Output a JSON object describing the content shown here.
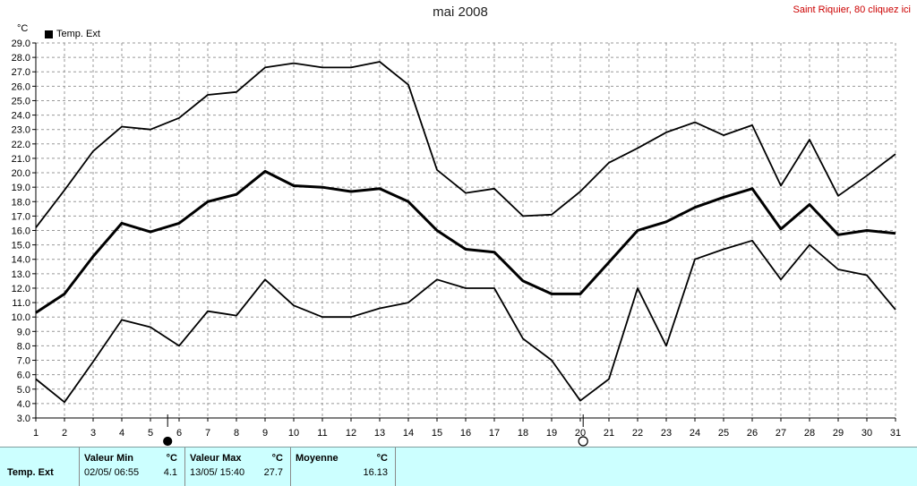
{
  "header": {
    "station_link": "Saint Riquier, 80 cliquez ici"
  },
  "colors": {
    "link": "#cc0000",
    "panel_background": "#ccffff",
    "series": "#000000",
    "grid": "#999999",
    "legend_swatch": "#000000"
  },
  "chart_data": {
    "type": "line",
    "title": "mai 2008",
    "xlabel": "",
    "ylabel": "°C",
    "xlim": [
      1,
      31
    ],
    "ylim": [
      3.0,
      29.0
    ],
    "grid": true,
    "x": [
      1,
      2,
      3,
      4,
      5,
      6,
      7,
      8,
      9,
      10,
      11,
      12,
      13,
      14,
      15,
      16,
      17,
      18,
      19,
      20,
      21,
      22,
      23,
      24,
      25,
      26,
      27,
      28,
      29,
      30,
      31
    ],
    "y_ticks": [
      "3.0",
      "4.0",
      "5.0",
      "6.0",
      "7.0",
      "8.0",
      "9.0",
      "10.0",
      "11.0",
      "12.0",
      "13.0",
      "14.0",
      "15.0",
      "16.0",
      "17.0",
      "18.0",
      "19.0",
      "20.0",
      "21.0",
      "22.0",
      "23.0",
      "24.0",
      "25.0",
      "26.0",
      "27.0",
      "28.0",
      "29.0"
    ],
    "legend": {
      "position": "top-left",
      "entries": [
        {
          "label": "Temp. Ext",
          "icon": "black-square"
        }
      ]
    },
    "series": [
      {
        "values": [
          16.2,
          18.8,
          21.5,
          23.2,
          23.0,
          23.8,
          25.4,
          25.6,
          27.3,
          27.6,
          27.3,
          27.3,
          27.7,
          26.1,
          20.2,
          18.6,
          18.9,
          17.0,
          17.1,
          18.7,
          20.7,
          21.7,
          22.8,
          23.5,
          22.6,
          23.3,
          19.1,
          22.3,
          18.4,
          19.8,
          21.3
        ]
      },
      {
        "values": [
          10.3,
          11.6,
          14.2,
          16.5,
          15.9,
          16.5,
          18.0,
          18.5,
          20.1,
          19.1,
          19.0,
          18.7,
          18.9,
          18.0,
          16.0,
          14.7,
          14.5,
          12.5,
          11.6,
          11.6,
          13.8,
          16.0,
          16.6,
          17.6,
          18.3,
          18.9,
          16.1,
          17.8,
          15.7,
          16.0,
          15.8
        ]
      },
      {
        "values": [
          5.7,
          4.1,
          6.9,
          9.8,
          9.3,
          8.0,
          10.4,
          10.1,
          12.6,
          10.8,
          10.0,
          10.0,
          10.6,
          11.0,
          12.6,
          12.0,
          12.0,
          8.5,
          7.0,
          4.2,
          5.7,
          12.0,
          8.0,
          14.0,
          14.7,
          15.3,
          12.6,
          15.0,
          13.3,
          12.9,
          10.5
        ]
      }
    ],
    "markers": [
      {
        "x": 5.6,
        "icon": "new-moon-icon"
      },
      {
        "x": 20.1,
        "icon": "full-moon-icon"
      }
    ]
  },
  "summary": {
    "row_label": "Temp. Ext",
    "columns": [
      {
        "header": "Valeur Min",
        "unit": "°C",
        "date": "02/05/ 06:55",
        "value": "4.1"
      },
      {
        "header": "Valeur Max",
        "unit": "°C",
        "date": "13/05/ 15:40",
        "value": "27.7"
      },
      {
        "header": "Moyenne",
        "unit": "°C",
        "value": "16.13"
      }
    ]
  }
}
